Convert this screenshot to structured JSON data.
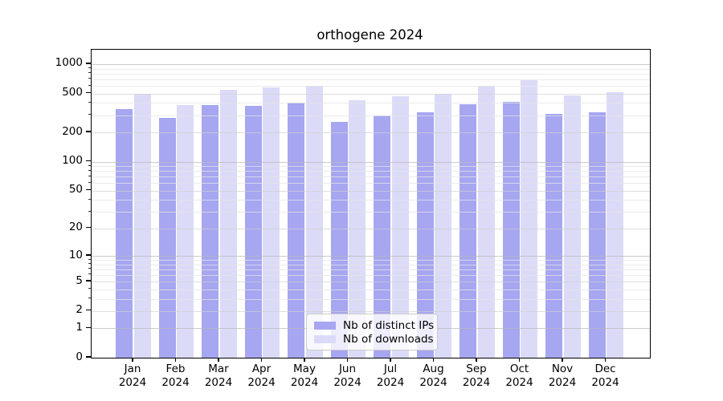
{
  "figure": {
    "background": "#ffffff"
  },
  "chart_data": {
    "type": "bar",
    "title": "orthogene 2024",
    "categories": [
      "Jan 2024",
      "Feb 2024",
      "Mar 2024",
      "Apr 2024",
      "May 2024",
      "Jun 2024",
      "Jul 2024",
      "Aug 2024",
      "Sep 2024",
      "Oct 2024",
      "Nov 2024",
      "Dec 2024"
    ],
    "series": [
      {
        "name": "Nb of distinct IPs",
        "color": "#a6a6f1",
        "values": [
          348,
          279,
          383,
          373,
          406,
          258,
          297,
          322,
          388,
          408,
          310,
          322
        ]
      },
      {
        "name": "Nb of downloads",
        "color": "#dbdbf8",
        "values": [
          494,
          383,
          549,
          573,
          601,
          430,
          469,
          499,
          604,
          685,
          478,
          518
        ]
      }
    ],
    "xlabel": "",
    "ylabel": "",
    "yscale": "log1p",
    "ylim": [
      0,
      1490
    ],
    "y_ticks": [
      0,
      1,
      2,
      5,
      10,
      20,
      50,
      100,
      200,
      500,
      1000
    ],
    "y_tick_labels": [
      "0",
      "1",
      "2",
      "5",
      "10",
      "20",
      "50",
      "100",
      "200",
      "500",
      "1000"
    ],
    "y_minor_ticks": [
      3,
      4,
      6,
      7,
      8,
      9,
      30,
      40,
      60,
      70,
      80,
      90,
      300,
      400,
      600,
      700,
      800,
      900
    ],
    "grid": "on",
    "legend_position": "lower center"
  }
}
